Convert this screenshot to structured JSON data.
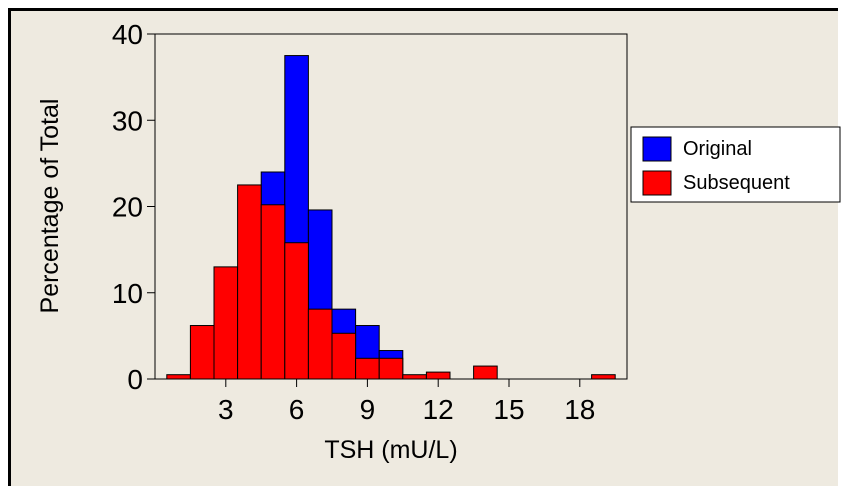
{
  "chart_data": {
    "type": "bar",
    "xlabel": "TSH (mU/L)",
    "ylabel": "Percentage of Total",
    "xlim": [
      0,
      20
    ],
    "ylim": [
      0,
      40
    ],
    "x_ticks": [
      3,
      6,
      9,
      12,
      15,
      18
    ],
    "y_ticks": [
      0,
      10,
      20,
      30,
      40
    ],
    "bin_width": 1,
    "bin_starts": [
      0.5,
      1.5,
      2.5,
      3.5,
      4.5,
      5.5,
      6.5,
      7.5,
      8.5,
      9.5,
      10.5,
      11.5,
      12.5,
      13.5,
      14.5,
      15.5,
      16.5,
      17.5,
      18.5
    ],
    "series": [
      {
        "name": "Original",
        "color": "#0000ff",
        "values": [
          0,
          0,
          0,
          0,
          24.0,
          37.5,
          19.6,
          8.1,
          6.2,
          3.3,
          0,
          0,
          0,
          0,
          0,
          0,
          0,
          0,
          0
        ]
      },
      {
        "name": "Subsequent",
        "color": "#ff0000",
        "values": [
          0.5,
          6.2,
          13.0,
          22.5,
          20.2,
          15.8,
          8.1,
          5.3,
          2.4,
          2.4,
          0.5,
          0.8,
          0,
          1.5,
          0,
          0,
          0,
          0,
          0.5
        ]
      }
    ],
    "legend": {
      "position": "right",
      "entries": [
        "Original",
        "Subsequent"
      ]
    },
    "grid": false
  }
}
